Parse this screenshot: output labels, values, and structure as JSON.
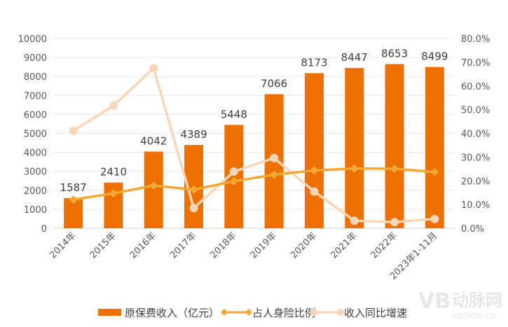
{
  "chart_data": {
    "type": "bar+line",
    "categories": [
      "2014年",
      "2015年",
      "2016年",
      "2017年",
      "2018年",
      "2019年",
      "2020年",
      "2021年",
      "2022年",
      "2023年1-11月"
    ],
    "y_left": {
      "min": 0,
      "max": 10000,
      "step": 1000,
      "ticks": [
        "0",
        "1000",
        "2000",
        "3000",
        "4000",
        "5000",
        "6000",
        "7000",
        "8000",
        "9000",
        "10000"
      ]
    },
    "y_right": {
      "min": 0,
      "max": 80,
      "step": 10,
      "ticks": [
        "0.0%",
        "10.0%",
        "20.0%",
        "30.0%",
        "40.0%",
        "50.0%",
        "60.0%",
        "70.0%",
        "80.0%"
      ]
    },
    "grid": true,
    "legend_position": "bottom",
    "series": [
      {
        "name": "原保费收入（亿元）",
        "type": "bar",
        "axis": "left",
        "color": "#ED7100",
        "values": [
          1587,
          2410,
          4042,
          4389,
          5448,
          7066,
          8173,
          8447,
          8653,
          8499
        ],
        "labels": [
          "1587",
          "2410",
          "4042",
          "4389",
          "5448",
          "7066",
          "8173",
          "8447",
          "8653",
          "8499"
        ]
      },
      {
        "name": "占人身险比例",
        "type": "line",
        "axis": "right",
        "marker": "diamond",
        "color": "#F5A733",
        "values": [
          12.1,
          14.7,
          18.0,
          16.3,
          19.8,
          22.6,
          24.4,
          25.2,
          25.1,
          23.7
        ]
      },
      {
        "name": "收入同比增速",
        "type": "line",
        "axis": "right",
        "marker": "circle",
        "color": "#FAD6B8",
        "values": [
          41.1,
          51.7,
          67.5,
          8.5,
          23.9,
          29.6,
          15.5,
          3.2,
          2.6,
          3.9
        ]
      }
    ]
  },
  "watermark": {
    "logo": "VB",
    "brand": "动脉网",
    "url": "VBDATA.CN"
  }
}
